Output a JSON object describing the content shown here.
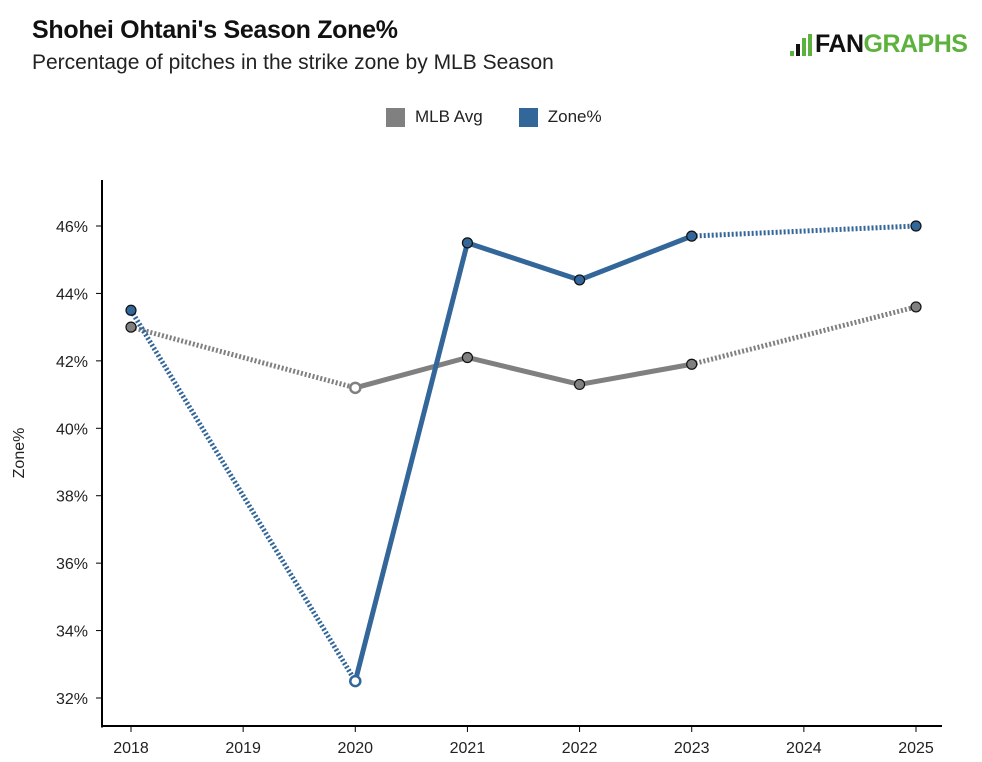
{
  "header": {
    "title": "Shohei Ohtani's Season Zone%",
    "subtitle": "Percentage of pitches in the strike zone by MLB Season"
  },
  "brand": {
    "logo_icon": "fangraphs-logo-icon",
    "name_part1": "FAN",
    "name_part2": "GRAPHS",
    "color_green": "#5cb23c"
  },
  "chart_data": {
    "type": "line",
    "title": "Shohei Ohtani's Season Zone%",
    "subtitle": "Percentage of pitches in the strike zone by MLB Season",
    "xlabel": "",
    "ylabel": "Zone%",
    "x": [
      2018,
      2019,
      2020,
      2021,
      2022,
      2023,
      2024,
      2025
    ],
    "xticks": [
      "2018",
      "2019",
      "2020",
      "2021",
      "2022",
      "2023",
      "2024",
      "2025"
    ],
    "yticks": [
      32,
      34,
      36,
      38,
      40,
      42,
      44,
      46
    ],
    "ytick_labels": [
      "32%",
      "34%",
      "36%",
      "38%",
      "40%",
      "42%",
      "44%",
      "46%"
    ],
    "xlim": [
      2017.85,
      2025.25
    ],
    "ylim": [
      31.2,
      47.4
    ],
    "grid": false,
    "legend_position": "top-center",
    "series": [
      {
        "name": "MLB Avg",
        "color": "#808080",
        "points": [
          {
            "x": 2018,
            "y": 43.0,
            "hollow": false
          },
          {
            "x": 2020,
            "y": 41.2,
            "hollow": true
          },
          {
            "x": 2021,
            "y": 42.1,
            "hollow": false
          },
          {
            "x": 2022,
            "y": 41.3,
            "hollow": false
          },
          {
            "x": 2023,
            "y": 41.9,
            "hollow": false
          },
          {
            "x": 2025,
            "y": 43.6,
            "hollow": false
          }
        ],
        "segments": [
          {
            "from": 2018,
            "to": 2020,
            "style": "dotted"
          },
          {
            "from": 2020,
            "to": 2021,
            "style": "solid"
          },
          {
            "from": 2021,
            "to": 2022,
            "style": "solid"
          },
          {
            "from": 2022,
            "to": 2023,
            "style": "solid"
          },
          {
            "from": 2023,
            "to": 2025,
            "style": "dotted"
          }
        ]
      },
      {
        "name": "Zone%",
        "color": "#336699",
        "points": [
          {
            "x": 2018,
            "y": 43.5,
            "hollow": false
          },
          {
            "x": 2020,
            "y": 32.5,
            "hollow": true
          },
          {
            "x": 2021,
            "y": 45.5,
            "hollow": false
          },
          {
            "x": 2022,
            "y": 44.4,
            "hollow": false
          },
          {
            "x": 2023,
            "y": 45.7,
            "hollow": false
          },
          {
            "x": 2025,
            "y": 46.0,
            "hollow": false
          }
        ],
        "segments": [
          {
            "from": 2018,
            "to": 2020,
            "style": "dotted"
          },
          {
            "from": 2020,
            "to": 2021,
            "style": "solid"
          },
          {
            "from": 2021,
            "to": 2022,
            "style": "solid"
          },
          {
            "from": 2022,
            "to": 2023,
            "style": "solid"
          },
          {
            "from": 2023,
            "to": 2025,
            "style": "dotted"
          }
        ]
      }
    ]
  },
  "legend": {
    "items": [
      {
        "label": "MLB Avg",
        "color": "#808080"
      },
      {
        "label": "Zone%",
        "color": "#336699"
      }
    ]
  }
}
